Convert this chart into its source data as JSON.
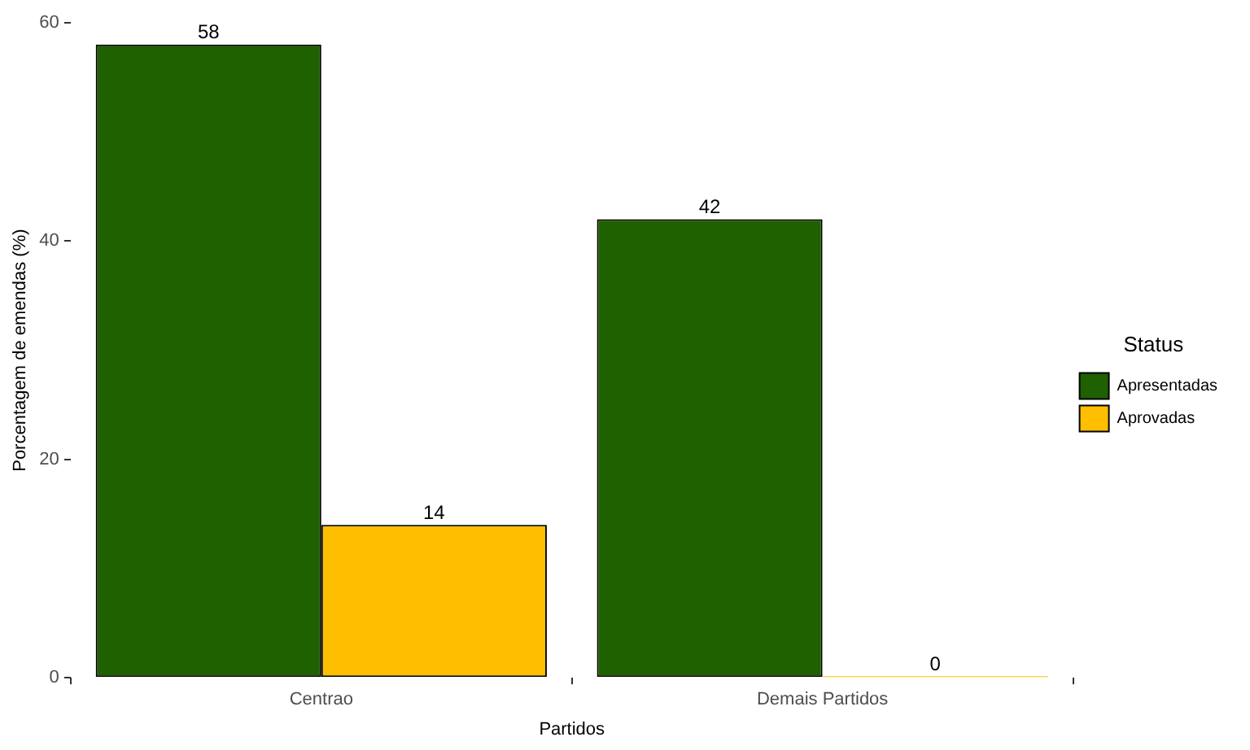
{
  "chart_data": {
    "type": "bar",
    "xlabel": "Partidos",
    "ylabel": "Porcentagem de emendas (%)",
    "legend_title": "Status",
    "categories": [
      "Centrao",
      "Demais Partidos"
    ],
    "series": [
      {
        "name": "Apresentadas",
        "color": "#1f6000",
        "values": [
          58,
          42
        ]
      },
      {
        "name": "Aprovadas",
        "color": "#ffbf00",
        "values": [
          14,
          0
        ]
      }
    ],
    "ylim": [
      0,
      60
    ],
    "yticks": [
      0,
      20,
      40,
      60
    ],
    "data_labels": true,
    "legend": "right"
  }
}
